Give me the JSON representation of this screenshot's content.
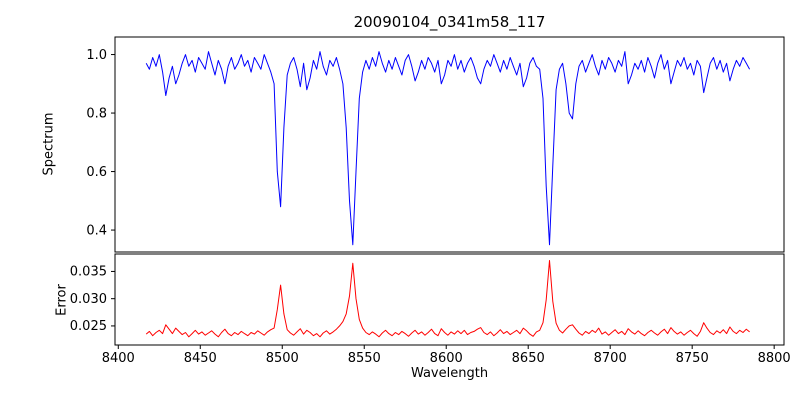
{
  "figure": {
    "background_color": "#ffffff"
  },
  "chart_data": {
    "type": "line",
    "title": "20090104_0341m58_117",
    "xlabel": "Wavelength",
    "grid": false,
    "legend": "none",
    "xlim": [
      8398,
      8806
    ],
    "xticks": [
      8400,
      8450,
      8500,
      8550,
      8600,
      8650,
      8700,
      8750,
      8800
    ],
    "xtick_labels": [
      "8400",
      "8450",
      "8500",
      "8550",
      "8600",
      "8650",
      "8700",
      "8750",
      "8800"
    ],
    "x": [
      8417,
      8419,
      8421,
      8423,
      8425,
      8427,
      8429,
      8431,
      8433,
      8435,
      8437,
      8439,
      8441,
      8443,
      8445,
      8447,
      8449,
      8451,
      8453,
      8455,
      8457,
      8459,
      8461,
      8463,
      8465,
      8467,
      8469,
      8471,
      8473,
      8475,
      8477,
      8479,
      8481,
      8483,
      8485,
      8487,
      8489,
      8491,
      8493,
      8495,
      8497,
      8499,
      8501,
      8503,
      8505,
      8507,
      8509,
      8511,
      8513,
      8515,
      8517,
      8519,
      8521,
      8523,
      8525,
      8527,
      8529,
      8531,
      8533,
      8535,
      8537,
      8539,
      8541,
      8543,
      8545,
      8547,
      8549,
      8551,
      8553,
      8555,
      8557,
      8559,
      8561,
      8563,
      8565,
      8567,
      8569,
      8571,
      8573,
      8575,
      8577,
      8579,
      8581,
      8583,
      8585,
      8587,
      8589,
      8591,
      8593,
      8595,
      8597,
      8599,
      8601,
      8603,
      8605,
      8607,
      8609,
      8611,
      8613,
      8615,
      8617,
      8619,
      8621,
      8623,
      8625,
      8627,
      8629,
      8631,
      8633,
      8635,
      8637,
      8639,
      8641,
      8643,
      8645,
      8647,
      8649,
      8651,
      8653,
      8655,
      8657,
      8659,
      8661,
      8663,
      8665,
      8667,
      8669,
      8671,
      8673,
      8675,
      8677,
      8679,
      8681,
      8683,
      8685,
      8687,
      8689,
      8691,
      8693,
      8695,
      8697,
      8699,
      8701,
      8703,
      8705,
      8707,
      8709,
      8711,
      8713,
      8715,
      8717,
      8719,
      8721,
      8723,
      8725,
      8727,
      8729,
      8731,
      8733,
      8735,
      8737,
      8739,
      8741,
      8743,
      8745,
      8747,
      8749,
      8751,
      8753,
      8755,
      8757,
      8759,
      8761,
      8763,
      8765,
      8767,
      8769,
      8771,
      8773,
      8775,
      8777,
      8779,
      8781,
      8783,
      8785
    ],
    "absorption_lines_wavelengths": [
      8498,
      8542,
      8662
    ],
    "panels": [
      {
        "name": "spectrum",
        "ylabel": "Spectrum",
        "color": "#0000ff",
        "ylim": [
          0.325,
          1.06
        ],
        "yticks": [
          0.4,
          0.6,
          0.8,
          1.0
        ],
        "ytick_labels": [
          "0.4",
          "0.6",
          "0.8",
          "1.0"
        ],
        "values": [
          0.97,
          0.95,
          0.99,
          0.96,
          1.0,
          0.94,
          0.86,
          0.92,
          0.96,
          0.9,
          0.93,
          0.97,
          1.0,
          0.96,
          0.98,
          0.94,
          0.99,
          0.97,
          0.95,
          1.01,
          0.97,
          0.93,
          0.98,
          0.95,
          0.9,
          0.96,
          0.99,
          0.95,
          0.97,
          1.0,
          0.96,
          0.98,
          0.94,
          0.99,
          0.97,
          0.95,
          1.0,
          0.97,
          0.94,
          0.9,
          0.6,
          0.48,
          0.75,
          0.93,
          0.97,
          0.99,
          0.95,
          0.89,
          0.97,
          0.88,
          0.92,
          0.98,
          0.95,
          1.01,
          0.96,
          0.93,
          0.98,
          0.96,
          0.99,
          0.95,
          0.9,
          0.75,
          0.5,
          0.35,
          0.6,
          0.85,
          0.94,
          0.98,
          0.95,
          0.99,
          0.96,
          1.01,
          0.97,
          0.94,
          0.98,
          0.95,
          0.99,
          0.96,
          0.93,
          0.98,
          1.0,
          0.96,
          0.91,
          0.94,
          0.98,
          0.95,
          0.99,
          0.97,
          0.94,
          0.98,
          0.9,
          0.93,
          0.98,
          0.96,
          1.0,
          0.95,
          0.98,
          0.94,
          0.97,
          0.99,
          0.96,
          0.92,
          0.9,
          0.95,
          0.98,
          0.96,
          1.0,
          0.97,
          0.94,
          0.98,
          0.95,
          0.99,
          0.96,
          0.93,
          0.97,
          0.89,
          0.92,
          0.97,
          0.99,
          0.96,
          0.95,
          0.85,
          0.55,
          0.35,
          0.62,
          0.88,
          0.95,
          0.97,
          0.9,
          0.8,
          0.78,
          0.9,
          0.96,
          0.98,
          0.94,
          0.97,
          1.0,
          0.96,
          0.93,
          0.98,
          0.95,
          0.99,
          0.97,
          0.94,
          0.98,
          0.96,
          1.01,
          0.9,
          0.93,
          0.97,
          0.95,
          0.98,
          0.94,
          0.99,
          0.96,
          0.92,
          0.97,
          1.0,
          0.95,
          0.98,
          0.9,
          0.94,
          0.98,
          0.96,
          0.99,
          0.95,
          0.97,
          0.93,
          0.98,
          0.96,
          0.87,
          0.92,
          0.97,
          0.99,
          0.95,
          0.98,
          0.94,
          0.97,
          0.91,
          0.95,
          0.98,
          0.96,
          0.99,
          0.97,
          0.95
        ]
      },
      {
        "name": "error",
        "ylabel": "Error",
        "color": "#ff0000",
        "ylim": [
          0.0215,
          0.0382
        ],
        "yticks": [
          0.025,
          0.03,
          0.035
        ],
        "ytick_labels": [
          "0.025",
          "0.030",
          "0.035"
        ],
        "values": [
          0.0235,
          0.024,
          0.0232,
          0.0238,
          0.0242,
          0.0236,
          0.0252,
          0.0244,
          0.0236,
          0.0246,
          0.024,
          0.0234,
          0.0238,
          0.023,
          0.0236,
          0.0242,
          0.0235,
          0.0239,
          0.0233,
          0.0237,
          0.0241,
          0.0235,
          0.023,
          0.0238,
          0.0244,
          0.0236,
          0.0232,
          0.0238,
          0.0234,
          0.024,
          0.0236,
          0.0232,
          0.0238,
          0.0235,
          0.0241,
          0.0237,
          0.0233,
          0.0239,
          0.0243,
          0.0246,
          0.028,
          0.0325,
          0.0272,
          0.0243,
          0.0237,
          0.0233,
          0.0239,
          0.0245,
          0.0235,
          0.0242,
          0.0238,
          0.0232,
          0.0236,
          0.023,
          0.0237,
          0.0241,
          0.0235,
          0.0239,
          0.0244,
          0.025,
          0.0258,
          0.0272,
          0.0305,
          0.0365,
          0.03,
          0.0262,
          0.0246,
          0.0238,
          0.0234,
          0.0239,
          0.0235,
          0.023,
          0.0237,
          0.0242,
          0.0236,
          0.0232,
          0.0238,
          0.0234,
          0.024,
          0.0236,
          0.0231,
          0.0237,
          0.0242,
          0.0235,
          0.0239,
          0.0233,
          0.0238,
          0.0244,
          0.0236,
          0.0232,
          0.0245,
          0.0238,
          0.0233,
          0.0239,
          0.0235,
          0.0241,
          0.0236,
          0.0242,
          0.0234,
          0.0238,
          0.024,
          0.0244,
          0.0247,
          0.0238,
          0.0234,
          0.0239,
          0.0232,
          0.0237,
          0.0243,
          0.0236,
          0.024,
          0.0234,
          0.0238,
          0.0242,
          0.0236,
          0.0246,
          0.0241,
          0.0235,
          0.0231,
          0.0239,
          0.0242,
          0.0256,
          0.0298,
          0.037,
          0.0295,
          0.0255,
          0.0242,
          0.0237,
          0.0244,
          0.025,
          0.0252,
          0.0244,
          0.0237,
          0.0233,
          0.024,
          0.0236,
          0.0242,
          0.0238,
          0.0246,
          0.0235,
          0.0239,
          0.0233,
          0.0238,
          0.0243,
          0.0236,
          0.024,
          0.0234,
          0.0245,
          0.0239,
          0.0235,
          0.0241,
          0.0236,
          0.0232,
          0.0238,
          0.0242,
          0.0237,
          0.0233,
          0.0239,
          0.0244,
          0.0236,
          0.0247,
          0.024,
          0.0235,
          0.0239,
          0.0233,
          0.0238,
          0.0242,
          0.0236,
          0.0231,
          0.024,
          0.0256,
          0.0246,
          0.0238,
          0.0234,
          0.0241,
          0.0237,
          0.0243,
          0.0236,
          0.0248,
          0.024,
          0.0236,
          0.0242,
          0.0238,
          0.0244,
          0.0239
        ]
      }
    ]
  }
}
